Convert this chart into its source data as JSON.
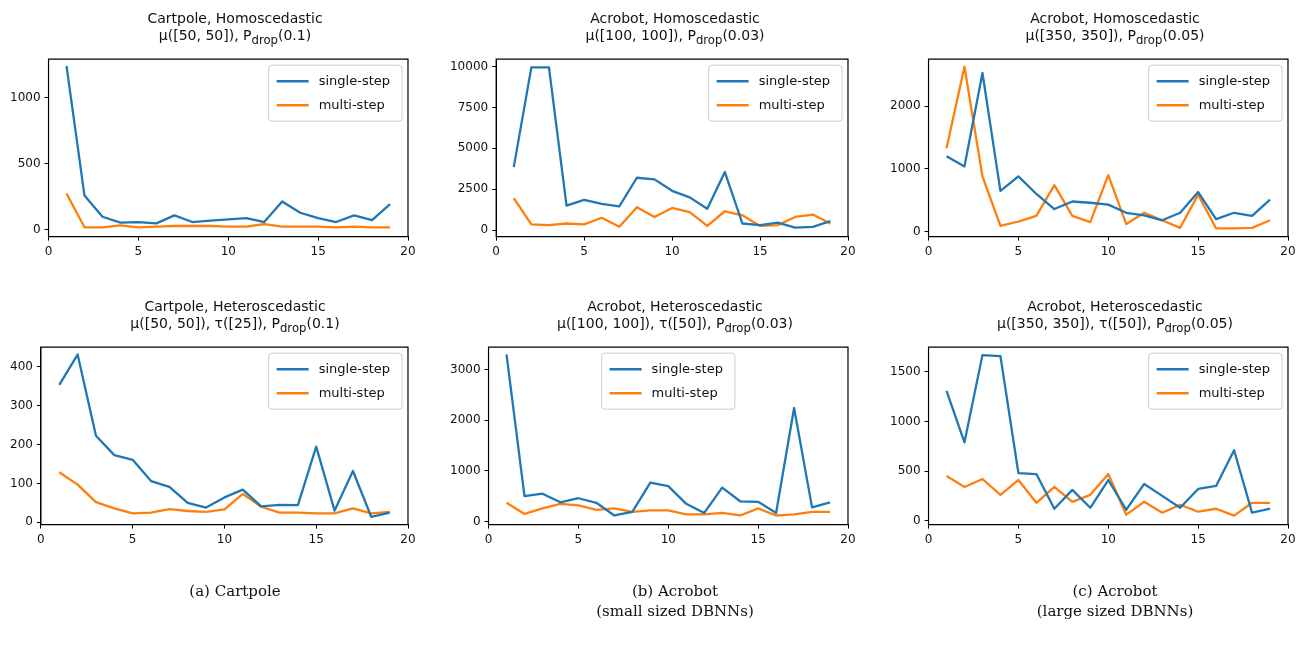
{
  "chart_data": [
    {
      "type": "line",
      "title": "Cartpole, Homoscedastic",
      "subtitle": "μ([50, 50]), P$_{drop}$(0.1)",
      "x": [
        1,
        2,
        3,
        4,
        5,
        6,
        7,
        8,
        9,
        10,
        11,
        12,
        13,
        14,
        15,
        16,
        17,
        18,
        19
      ],
      "xlim": [
        0,
        20
      ],
      "xticks": [
        0,
        5,
        10,
        15,
        20
      ],
      "ylim": [
        -50,
        1290
      ],
      "yticks": [
        0,
        500,
        1000
      ],
      "legend": "top right",
      "series": [
        {
          "name": "single-step",
          "color": "#1f77b4",
          "values": [
            1240,
            260,
            100,
            55,
            60,
            50,
            110,
            60,
            70,
            80,
            90,
            60,
            215,
            130,
            90,
            60,
            110,
            75,
            195
          ]
        },
        {
          "name": "multi-step",
          "color": "#ff7f0e",
          "values": [
            275,
            20,
            20,
            35,
            20,
            25,
            30,
            30,
            30,
            25,
            25,
            45,
            25,
            25,
            25,
            20,
            25,
            20,
            20
          ]
        }
      ]
    },
    {
      "type": "line",
      "title": "Acrobot, Homoscedastic",
      "subtitle": "μ([100, 100]), P$_{drop}$(0.03)",
      "x": [
        1,
        2,
        3,
        4,
        5,
        6,
        7,
        8,
        9,
        10,
        11,
        12,
        13,
        14,
        15,
        16,
        17,
        18,
        19
      ],
      "xlim": [
        0,
        20
      ],
      "xticks": [
        0,
        5,
        10,
        15,
        20
      ],
      "ylim": [
        -400,
        10450
      ],
      "yticks": [
        0,
        2500,
        5000,
        7500,
        10000
      ],
      "legend": "top right",
      "series": [
        {
          "name": "single-step",
          "color": "#1f77b4",
          "values": [
            3850,
            9950,
            9950,
            1500,
            1850,
            1600,
            1450,
            3200,
            3100,
            2400,
            2000,
            1300,
            3550,
            400,
            300,
            450,
            150,
            200,
            550
          ]
        },
        {
          "name": "multi-step",
          "color": "#ff7f0e",
          "values": [
            1950,
            350,
            300,
            400,
            350,
            750,
            200,
            1400,
            800,
            1350,
            1100,
            250,
            1150,
            900,
            250,
            300,
            800,
            950,
            400
          ]
        }
      ]
    },
    {
      "type": "line",
      "title": "Acrobot, Homoscedastic",
      "subtitle": "μ([350, 350]), P$_{drop}$(0.05)",
      "x": [
        1,
        2,
        3,
        4,
        5,
        6,
        7,
        8,
        9,
        10,
        11,
        12,
        13,
        14,
        15,
        16,
        17,
        18,
        19
      ],
      "xlim": [
        0,
        20
      ],
      "xticks": [
        0,
        5,
        10,
        15,
        20
      ],
      "ylim": [
        -80,
        2750
      ],
      "yticks": [
        0,
        1000,
        2000
      ],
      "legend": "top right",
      "series": [
        {
          "name": "single-step",
          "color": "#1f77b4",
          "values": [
            1200,
            1040,
            2530,
            650,
            880,
            600,
            360,
            480,
            460,
            430,
            300,
            260,
            180,
            300,
            630,
            200,
            300,
            250,
            510
          ]
        },
        {
          "name": "multi-step",
          "color": "#ff7f0e",
          "values": [
            1330,
            2630,
            880,
            90,
            160,
            250,
            740,
            250,
            150,
            900,
            120,
            300,
            180,
            60,
            590,
            50,
            50,
            60,
            180
          ]
        }
      ]
    },
    {
      "type": "line",
      "title": "Cartpole, Heteroscedastic",
      "subtitle": "μ([50, 50]), τ([25]), P$_{drop}$(0.1)",
      "x": [
        1,
        2,
        3,
        4,
        5,
        6,
        7,
        8,
        9,
        10,
        11,
        12,
        13,
        14,
        15,
        16,
        17,
        18,
        19
      ],
      "xlim": [
        0,
        20
      ],
      "xticks": [
        0,
        5,
        10,
        15,
        20
      ],
      "ylim": [
        -6,
        451
      ],
      "yticks": [
        0,
        100,
        200,
        300,
        400
      ],
      "legend": "top right",
      "annotations": [
        "(a) Cartpole"
      ],
      "series": [
        {
          "name": "single-step",
          "color": "#1f77b4",
          "values": [
            354,
            432,
            223,
            173,
            161,
            106,
            91,
            50,
            38,
            64,
            84,
            41,
            45,
            44,
            195,
            30,
            132,
            14,
            25
          ]
        },
        {
          "name": "multi-step",
          "color": "#ff7f0e",
          "values": [
            129,
            97,
            52,
            36,
            23,
            25,
            34,
            29,
            27,
            33,
            73,
            40,
            25,
            25,
            23,
            23,
            36,
            23,
            27
          ]
        }
      ]
    },
    {
      "type": "line",
      "title": "Acrobot, Heteroscedastic",
      "subtitle": "μ([100, 100]), τ([50]), P$_{drop}$(0.03)",
      "x": [
        1,
        2,
        3,
        4,
        5,
        6,
        7,
        8,
        9,
        10,
        11,
        12,
        13,
        14,
        15,
        16,
        17,
        18,
        19
      ],
      "xlim": [
        0,
        20
      ],
      "xticks": [
        0,
        5,
        10,
        15,
        20
      ],
      "ylim": [
        -60,
        3440
      ],
      "yticks": [
        0,
        1000,
        2000,
        3000
      ],
      "legend": "top",
      "annotations": [
        "(b) Acrobot",
        "(small sized DBNNs)"
      ],
      "series": [
        {
          "name": "single-step",
          "color": "#1f77b4",
          "values": [
            3300,
            500,
            550,
            380,
            460,
            370,
            120,
            190,
            770,
            700,
            350,
            170,
            670,
            400,
            390,
            170,
            2240,
            280,
            380
          ]
        },
        {
          "name": "multi-step",
          "color": "#ff7f0e",
          "values": [
            370,
            150,
            260,
            350,
            320,
            230,
            260,
            190,
            220,
            220,
            140,
            140,
            170,
            120,
            260,
            120,
            140,
            190,
            190
          ]
        }
      ]
    },
    {
      "type": "line",
      "title": "Acrobot, Heteroscedastic",
      "subtitle": "μ([350, 350]), τ([50]), P$_{drop}$(0.05)",
      "x": [
        1,
        2,
        3,
        4,
        5,
        6,
        7,
        8,
        9,
        10,
        11,
        12,
        13,
        14,
        15,
        16,
        17,
        18,
        19
      ],
      "xlim": [
        0,
        20
      ],
      "xticks": [
        0,
        5,
        10,
        15,
        20
      ],
      "ylim": [
        -40,
        1750
      ],
      "yticks": [
        0,
        500,
        1000,
        1500
      ],
      "legend": "top right",
      "annotations": [
        "(c) Acrobot",
        "(large sized DBNNs)"
      ],
      "series": [
        {
          "name": "single-step",
          "color": "#1f77b4",
          "values": [
            1310,
            790,
            1670,
            1660,
            480,
            470,
            120,
            310,
            130,
            410,
            110,
            370,
            250,
            130,
            320,
            350,
            710,
            80,
            120
          ]
        },
        {
          "name": "multi-step",
          "color": "#ff7f0e",
          "values": [
            450,
            340,
            420,
            260,
            410,
            180,
            340,
            190,
            260,
            470,
            60,
            190,
            80,
            160,
            90,
            120,
            50,
            180,
            180
          ]
        }
      ]
    }
  ]
}
